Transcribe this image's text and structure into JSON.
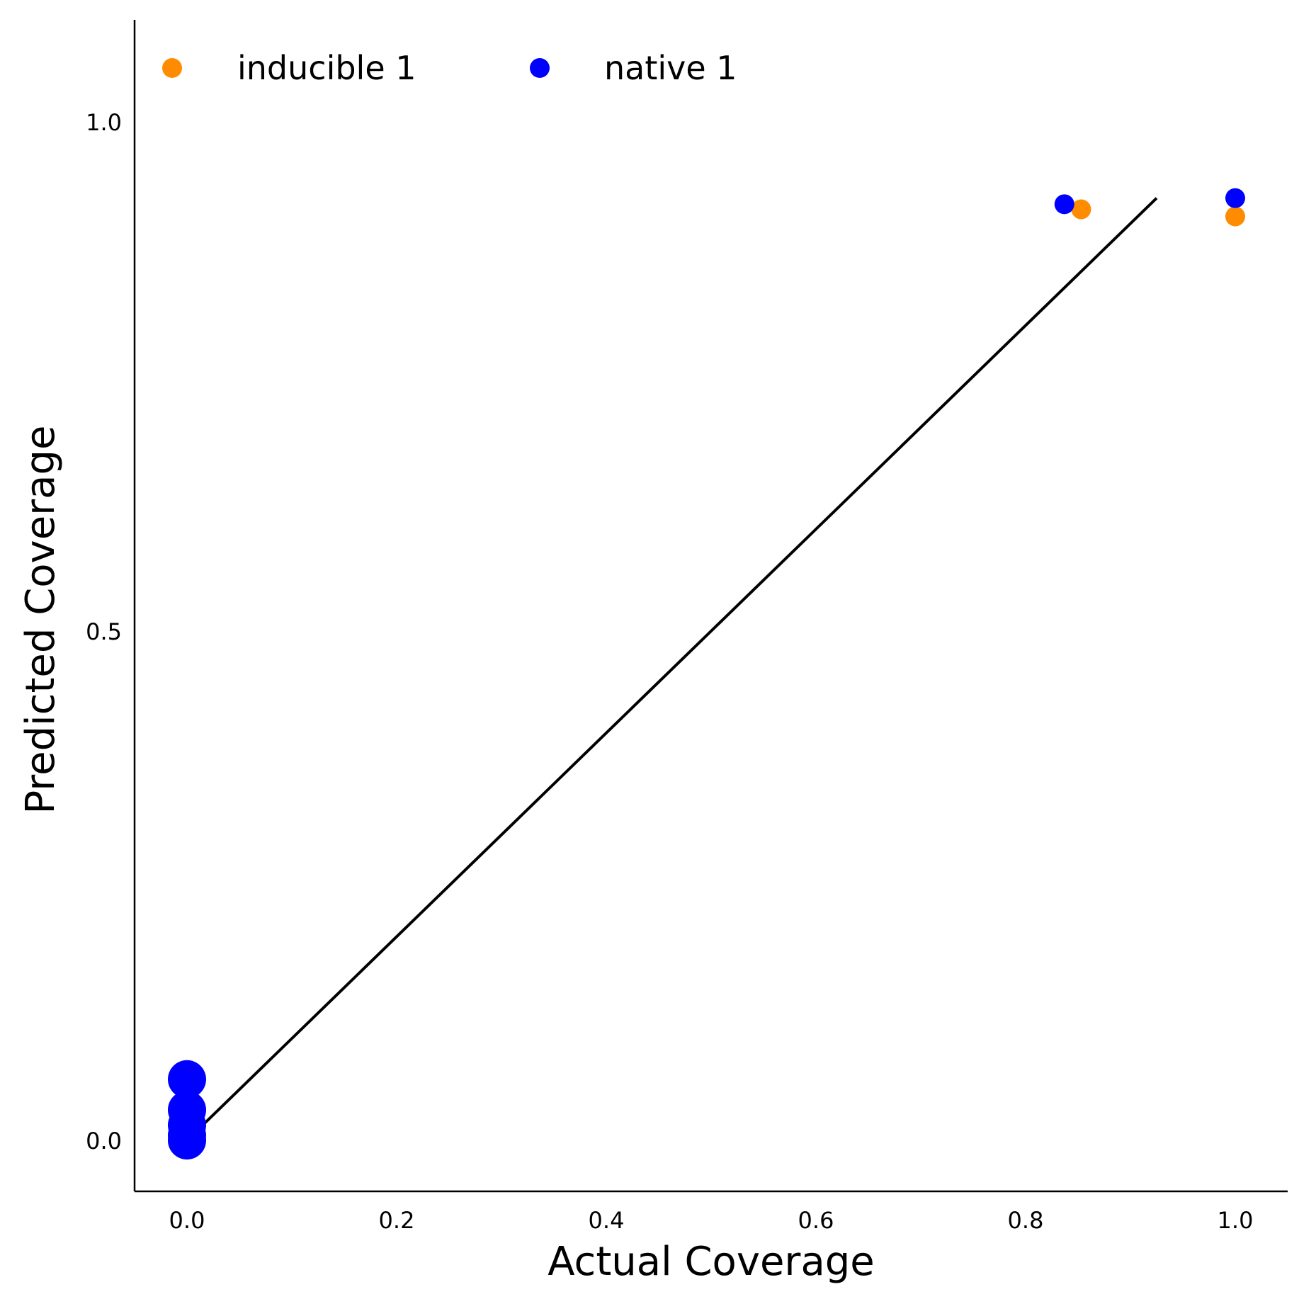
{
  "chart_data": {
    "type": "scatter",
    "xlabel": "Actual Coverage",
    "ylabel": "Predicted Coverage",
    "xlim": [
      -0.05,
      1.05
    ],
    "ylim": [
      -0.05,
      1.1
    ],
    "x_ticks": [
      "0.0",
      "0.2",
      "0.4",
      "0.6",
      "0.8",
      "1.0"
    ],
    "x_tick_values": [
      0.0,
      0.2,
      0.4,
      0.6,
      0.8,
      1.0
    ],
    "y_ticks": [
      "0.0",
      "0.5",
      "1.0"
    ],
    "y_tick_values": [
      0.0,
      0.5,
      1.0
    ],
    "grid": false,
    "legend_position": "top-left",
    "reference_line": {
      "x": [
        0.0,
        0.925
      ],
      "y": [
        0.0,
        0.925
      ],
      "color": "#000000"
    },
    "series": [
      {
        "name": "inducible 1",
        "color": "#ff8c00",
        "points": [
          {
            "x": 0.853,
            "y": 0.914
          },
          {
            "x": 1.0,
            "y": 0.907
          }
        ]
      },
      {
        "name": "native 1",
        "color": "#0000ff",
        "points": [
          {
            "x": 0.837,
            "y": 0.919
          },
          {
            "x": 1.0,
            "y": 0.925
          },
          {
            "x": 0.0,
            "y": 0.06,
            "size": "large"
          },
          {
            "x": 0.0,
            "y": 0.03,
            "size": "large"
          },
          {
            "x": 0.0,
            "y": 0.015,
            "size": "large"
          },
          {
            "x": 0.0,
            "y": 0.005,
            "size": "large"
          },
          {
            "x": 0.0,
            "y": 0.0,
            "size": "large"
          }
        ]
      }
    ]
  }
}
